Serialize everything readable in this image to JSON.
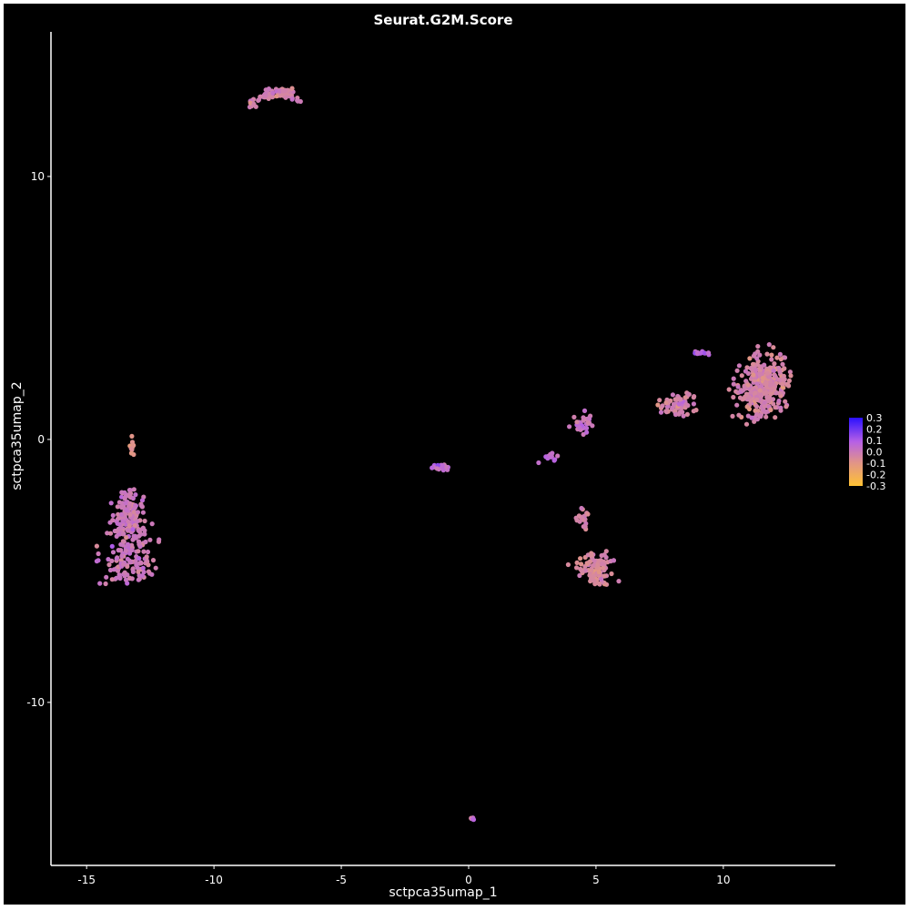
{
  "chart_data": {
    "type": "scatter",
    "title": "Seurat.G2M.Score",
    "xlabel": "sctpca35umap_1",
    "ylabel": "sctpca35umap_2",
    "xlim": [
      -16.4,
      14.4
    ],
    "ylim": [
      -16.2,
      15.5
    ],
    "x_ticks": [
      -15,
      -10,
      -5,
      0,
      5,
      10
    ],
    "x_tick_labels": [
      "-15",
      "-10",
      "-5",
      "0",
      "5",
      "10"
    ],
    "y_ticks": [
      -10,
      0,
      10
    ],
    "y_tick_labels": [
      "-10",
      "0",
      "10"
    ],
    "grid": false,
    "legend": {
      "placement": "right",
      "type": "colorbar",
      "range": [
        -0.3,
        0.3
      ],
      "ticks": [
        0.3,
        0.2,
        0.1,
        0.0,
        -0.1,
        -0.2,
        -0.3
      ],
      "tick_labels": [
        "0.3",
        "0.2",
        "0.1",
        "0.0",
        "-0.1",
        "-0.2",
        "-0.3"
      ],
      "colors": [
        "#2a10ff",
        "#b660e6",
        "#e0938a",
        "#ffc233"
      ]
    },
    "colors": {
      "background": "#000000",
      "axis": "#ffffff",
      "text": "#ffffff"
    },
    "clusters": [
      {
        "cx": -7.6,
        "cy": 13.1,
        "sx": 0.6,
        "sy": 0.3,
        "n": 70,
        "mean": -0.03,
        "shape": "arc"
      },
      {
        "cx": -13.2,
        "cy": -0.3,
        "sx": 0.1,
        "sy": 0.3,
        "n": 10,
        "mean": -0.05
      },
      {
        "cx": -13.3,
        "cy": -4.1,
        "sx": 0.7,
        "sy": 0.9,
        "n": 260,
        "mean": 0.0,
        "shape": "pear"
      },
      {
        "cx": -1.1,
        "cy": -1.05,
        "sx": 0.3,
        "sy": 0.1,
        "n": 24,
        "mean": 0.05
      },
      {
        "cx": 0.15,
        "cy": -14.4,
        "sx": 0.05,
        "sy": 0.05,
        "n": 5,
        "mean": 0.05
      },
      {
        "cx": 3.2,
        "cy": -0.7,
        "sx": 0.25,
        "sy": 0.2,
        "n": 15,
        "mean": 0.05
      },
      {
        "cx": 4.5,
        "cy": 0.6,
        "sx": 0.35,
        "sy": 0.3,
        "n": 30,
        "mean": 0.02
      },
      {
        "cx": 4.5,
        "cy": -3.0,
        "sx": 0.2,
        "sy": 0.3,
        "n": 20,
        "mean": -0.03
      },
      {
        "cx": 5.0,
        "cy": -4.9,
        "sx": 0.55,
        "sy": 0.5,
        "n": 110,
        "mean": -0.05
      },
      {
        "cx": 8.2,
        "cy": 1.3,
        "sx": 0.6,
        "sy": 0.35,
        "n": 70,
        "mean": -0.03
      },
      {
        "cx": 9.1,
        "cy": 3.3,
        "sx": 0.3,
        "sy": 0.1,
        "n": 12,
        "mean": 0.05
      },
      {
        "cx": 11.6,
        "cy": 2.0,
        "sx": 0.8,
        "sy": 1.0,
        "n": 330,
        "mean": -0.04
      }
    ]
  }
}
